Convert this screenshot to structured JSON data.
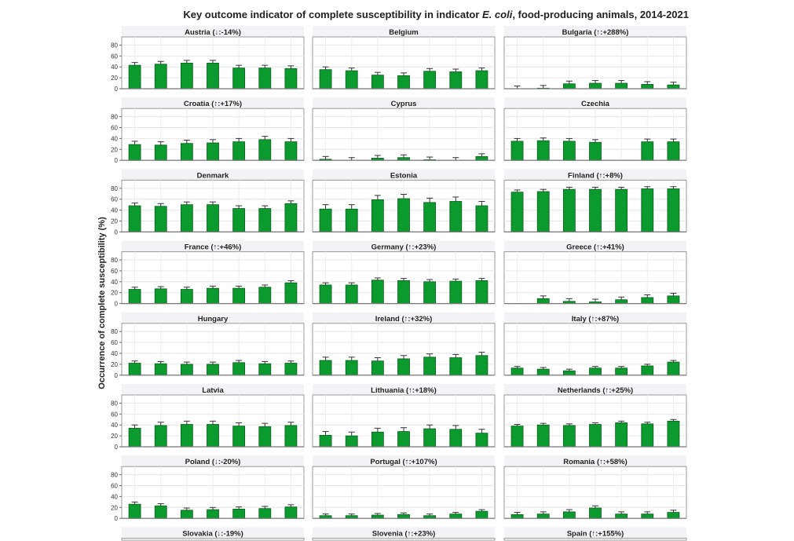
{
  "chart_data": {
    "type": "bar",
    "title_main": "Key outcome indicator of complete susceptibility in indicator ",
    "title_italic": "E. coli",
    "title_end": ", food-producing animals, 2014-2021",
    "ylabel": "Occurrence of complete susceptibility (%)",
    "ylim": [
      0,
      95
    ],
    "yticks": [
      "0",
      "20",
      "40",
      "60",
      "80"
    ],
    "grid": true,
    "bar_color": "#0a9a2e",
    "panels": [
      {
        "title": "Austria (↓:-14%)",
        "values": [
          43,
          45,
          47,
          47,
          38,
          38,
          37
        ],
        "err": 5
      },
      {
        "title": "Belgium",
        "values": [
          35,
          33,
          25,
          24,
          32,
          31,
          33
        ],
        "err": 5
      },
      {
        "title": "Bulgaria (↑:+288%)",
        "values": [
          0,
          1,
          9,
          10,
          10,
          8,
          7
        ],
        "err": 5
      },
      {
        "title": "Croatia (↑:+17%)",
        "values": [
          29,
          28,
          31,
          32,
          34,
          38,
          34
        ],
        "err": 6
      },
      {
        "title": "Cyprus",
        "values": [
          2,
          0,
          4,
          5,
          1,
          0,
          7
        ],
        "err": 5
      },
      {
        "title": "Czechia",
        "values": [
          35,
          36,
          35,
          33,
          null,
          34,
          34
        ],
        "err": 5
      },
      {
        "title": "Denmark",
        "values": [
          48,
          47,
          50,
          50,
          43,
          43,
          52
        ],
        "err": 5
      },
      {
        "title": "Estonia",
        "values": [
          42,
          42,
          59,
          61,
          54,
          56,
          48
        ],
        "err": 8
      },
      {
        "title": "Finland (↑:+8%)",
        "values": [
          73,
          74,
          78,
          78,
          78,
          79,
          79
        ],
        "err": 4
      },
      {
        "title": "France (↑:+46%)",
        "values": [
          26,
          27,
          26,
          28,
          28,
          30,
          38
        ],
        "err": 4
      },
      {
        "title": "Germany (↑:+23%)",
        "values": [
          34,
          34,
          43,
          42,
          40,
          41,
          42
        ],
        "err": 4
      },
      {
        "title": "Greece (↑:+41%)",
        "values": [
          null,
          9,
          4,
          3,
          7,
          11,
          14
        ],
        "err": 5
      },
      {
        "title": "Hungary",
        "values": [
          22,
          21,
          20,
          20,
          23,
          21,
          22
        ],
        "err": 4
      },
      {
        "title": "Ireland (↑:+32%)",
        "values": [
          27,
          27,
          26,
          30,
          33,
          32,
          36
        ],
        "err": 6
      },
      {
        "title": "Italy (↑:+87%)",
        "values": [
          13,
          11,
          8,
          13,
          13,
          17,
          24
        ],
        "err": 3
      },
      {
        "title": "Latvia",
        "values": [
          34,
          39,
          41,
          41,
          38,
          37,
          39
        ],
        "err": 6
      },
      {
        "title": "Lithuania (↑:+18%)",
        "values": [
          21,
          20,
          27,
          28,
          33,
          32,
          25
        ],
        "err": 7
      },
      {
        "title": "Netherlands (↑:+25%)",
        "values": [
          38,
          40,
          39,
          41,
          44,
          42,
          47
        ],
        "err": 3
      },
      {
        "title": "Poland (↓:-20%)",
        "values": [
          26,
          23,
          15,
          16,
          17,
          18,
          21
        ],
        "err": 4
      },
      {
        "title": "Portugal (↑:+107%)",
        "values": [
          5,
          5,
          6,
          7,
          5,
          8,
          13
        ],
        "err": 3
      },
      {
        "title": "Romania (↑:+58%)",
        "values": [
          7,
          8,
          12,
          19,
          8,
          8,
          11
        ],
        "err": 4
      },
      {
        "title": "Slovakia (↓:-19%)",
        "values": [],
        "err": 0
      },
      {
        "title": "Slovenia (↑:+23%)",
        "values": [],
        "err": 0
      },
      {
        "title": "Spain (↑:+155%)",
        "values": [],
        "err": 0
      }
    ]
  }
}
